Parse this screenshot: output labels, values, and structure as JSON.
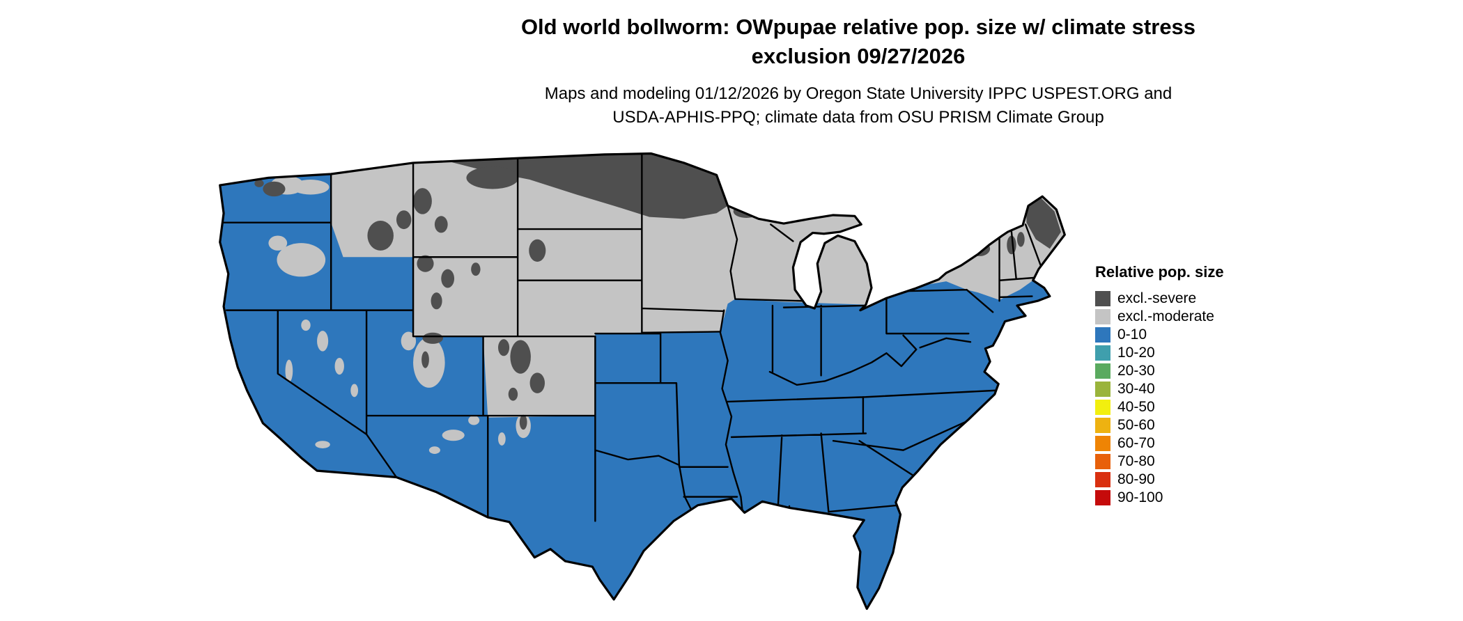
{
  "title": {
    "line1": "Old world bollworm: OWpupae relative pop. size w/ climate stress",
    "line2": "exclusion 09/27/2026"
  },
  "subtitle": {
    "line1": "Maps and modeling 01/12/2026 by Oregon State University IPPC USPEST.ORG and",
    "line2": "USDA-APHIS-PPQ; climate data from OSU PRISM Climate Group"
  },
  "legend": {
    "title": "Relative pop. size",
    "items": [
      {
        "label": "excl.-severe",
        "color": "#4f4f4f"
      },
      {
        "label": "excl.-moderate",
        "color": "#c4c4c4"
      },
      {
        "label": "0-10",
        "color": "#2e77bc"
      },
      {
        "label": "10-20",
        "color": "#3f9fad"
      },
      {
        "label": "20-30",
        "color": "#5aaa5f"
      },
      {
        "label": "30-40",
        "color": "#9ab43b"
      },
      {
        "label": "40-50",
        "color": "#f2ef0f"
      },
      {
        "label": "50-60",
        "color": "#eeb211"
      },
      {
        "label": "60-70",
        "color": "#ef8404"
      },
      {
        "label": "70-80",
        "color": "#e8600a"
      },
      {
        "label": "80-90",
        "color": "#d93010"
      },
      {
        "label": "90-100",
        "color": "#c50b0b"
      }
    ]
  },
  "map": {
    "colors": {
      "base_0_10": "#2e77bc",
      "excl_moderate": "#c4c4c4",
      "excl_severe": "#4f4f4f",
      "border": "#000000",
      "background": "#ffffff"
    }
  }
}
